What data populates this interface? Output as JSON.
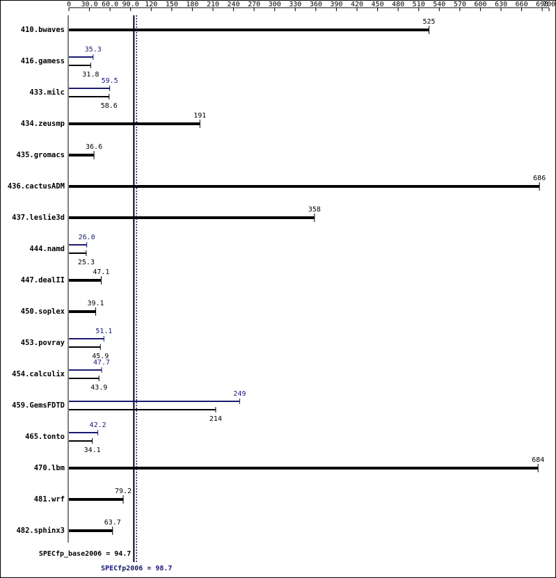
{
  "chart_data": {
    "type": "bar",
    "categories": [
      "410.bwaves",
      "416.gamess",
      "433.milc",
      "434.zeusmp",
      "435.gromacs",
      "436.cactusADM",
      "437.leslie3d",
      "444.namd",
      "447.dealII",
      "450.soplex",
      "453.povray",
      "454.calculix",
      "459.GemsFDTD",
      "465.tonto",
      "470.lbm",
      "481.wrf",
      "482.sphinx3"
    ],
    "series": [
      {
        "color": "#000000",
        "values": [
          525,
          31.8,
          58.6,
          191,
          36.6,
          686,
          358,
          25.3,
          47.1,
          39.1,
          45.9,
          43.9,
          214,
          34.1,
          684,
          79.2,
          63.7
        ]
      },
      {
        "color": "#191970",
        "values": [
          null,
          35.3,
          59.5,
          null,
          null,
          null,
          null,
          26.0,
          null,
          null,
          51.1,
          47.7,
          249,
          42.2,
          null,
          null,
          null
        ],
        "value_labels": [
          null,
          "35.3",
          "59.5",
          null,
          null,
          null,
          null,
          "26.0",
          null,
          null,
          "51.1",
          "47.7",
          "249",
          "42.2",
          null,
          null,
          null
        ]
      }
    ],
    "xlim": [
      0,
      700
    ],
    "xticks": [
      0,
      {
        "value": 30,
        "label": "30.0"
      },
      {
        "value": 60,
        "label": "60.0"
      },
      {
        "value": 90,
        "label": "90.0"
      },
      120,
      150,
      180,
      210,
      240,
      270,
      300,
      330,
      360,
      390,
      420,
      450,
      480,
      510,
      540,
      570,
      600,
      630,
      660,
      690,
      700
    ],
    "reference_lines": [
      {
        "label": "SPECfp_base2006 =",
        "value": 94.7,
        "color": "#000000"
      },
      {
        "label": "SPECfp2006 =",
        "value": 98.7,
        "color": "#191970"
      }
    ]
  }
}
